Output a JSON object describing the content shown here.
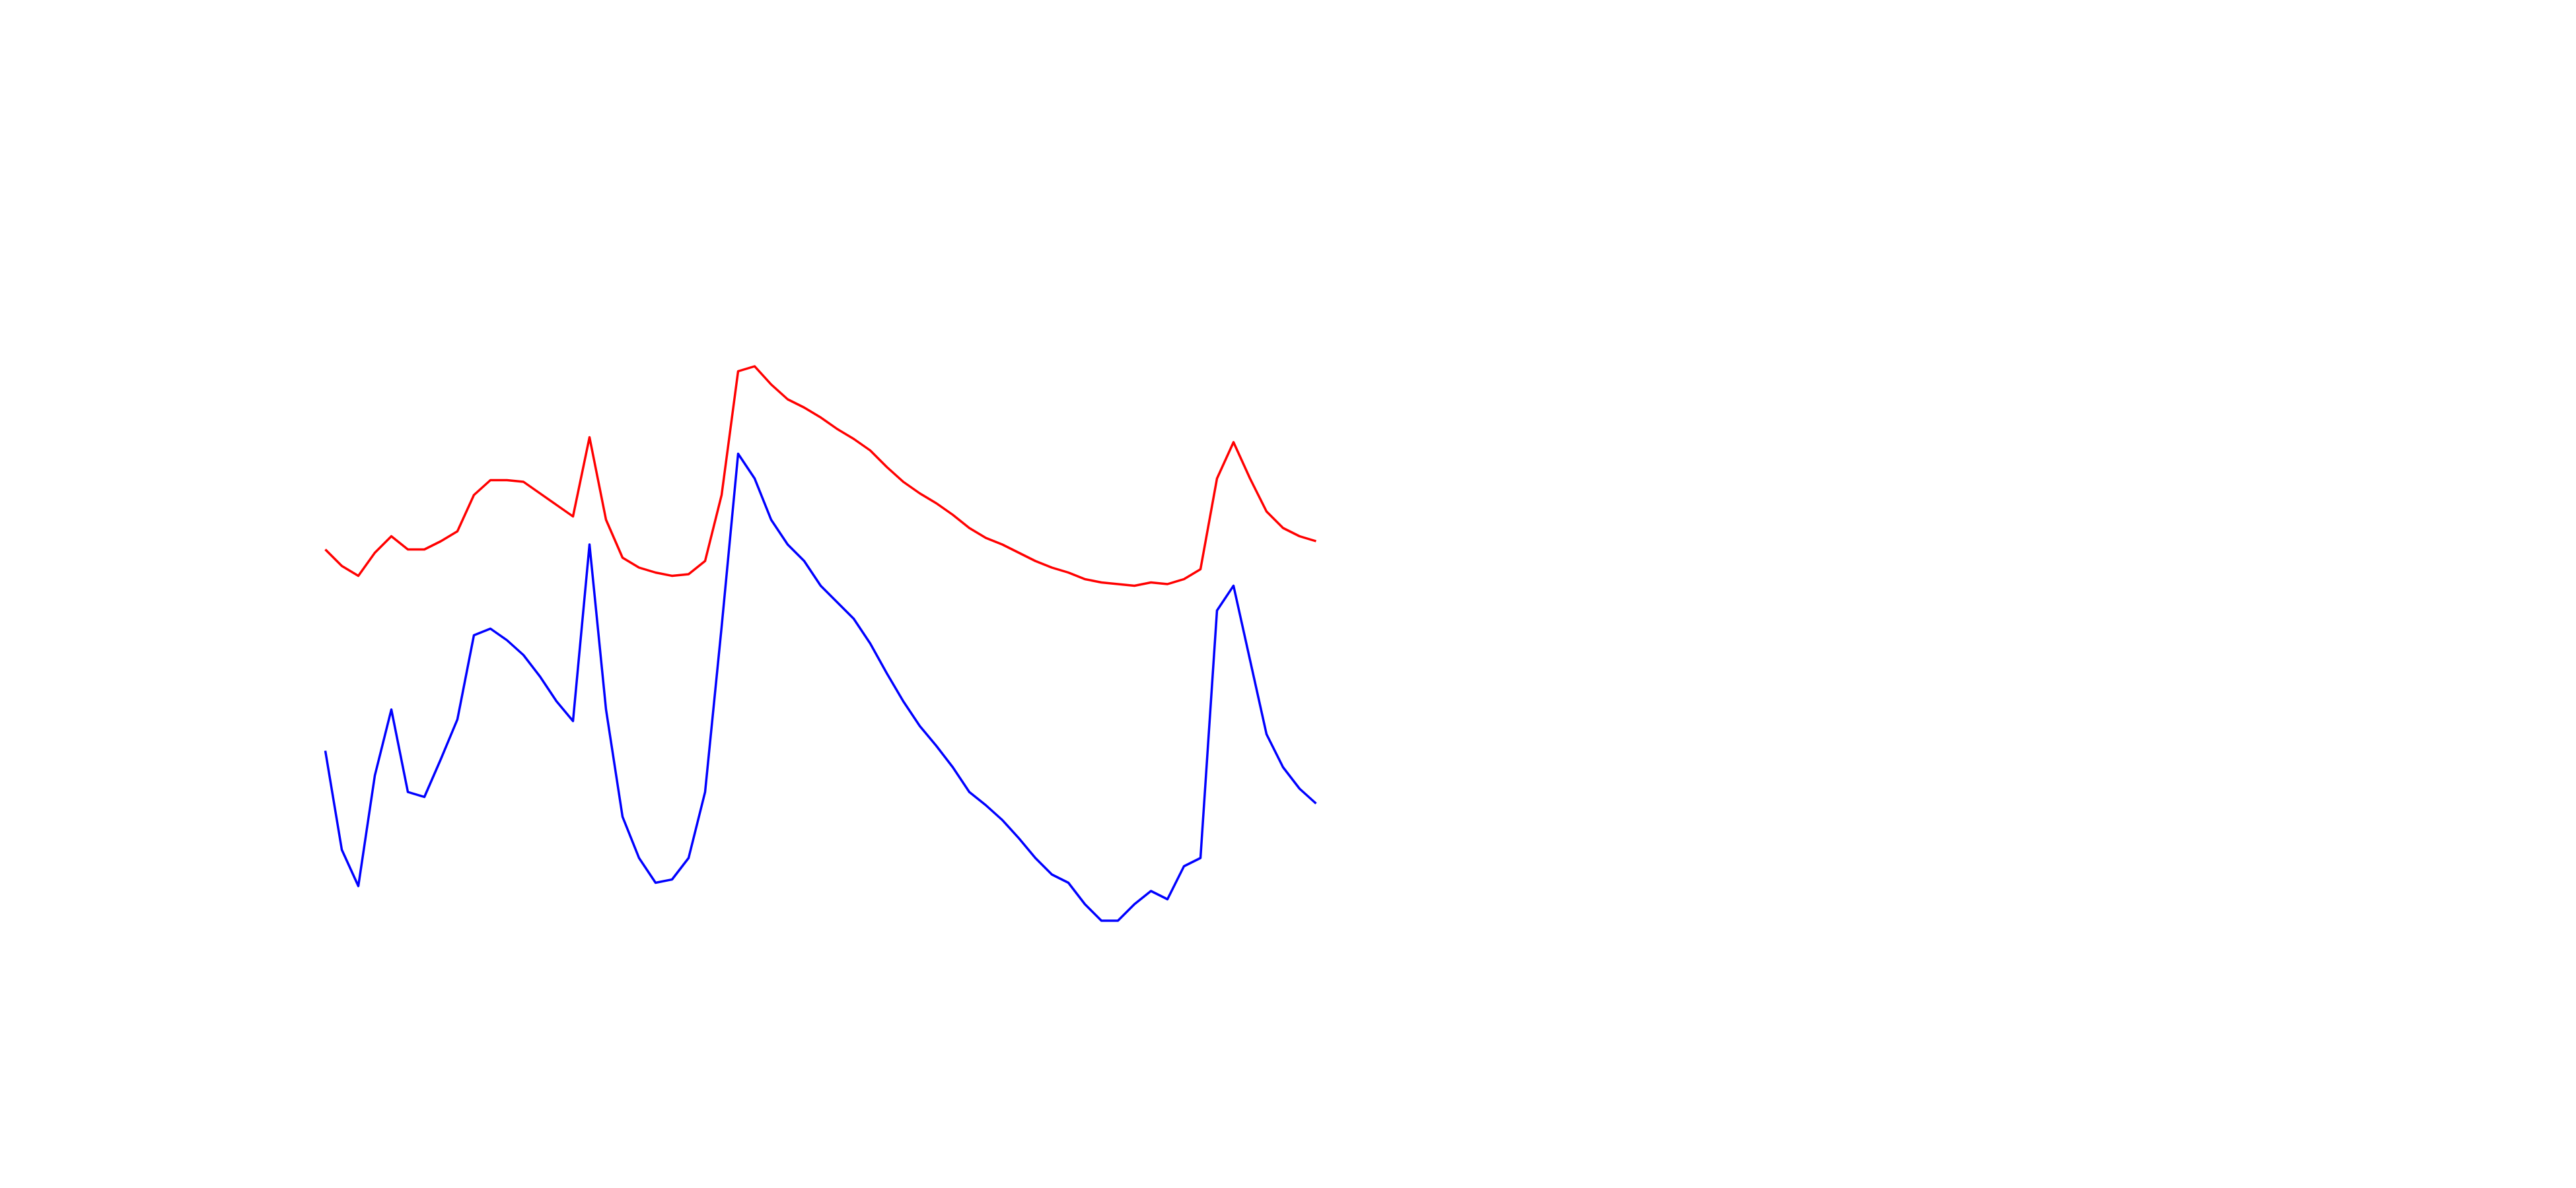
{
  "chart_data": {
    "type": "line",
    "x": [
      0,
      1,
      2,
      3,
      4,
      5,
      6,
      7,
      8,
      9,
      10,
      11,
      12,
      13,
      14,
      15,
      16,
      17,
      18,
      19,
      20,
      21,
      22,
      23,
      24,
      25,
      26,
      27,
      28,
      29,
      30,
      31,
      32,
      33,
      34,
      35,
      36,
      37,
      38,
      39,
      40,
      41,
      42,
      43,
      44,
      45,
      46,
      47,
      48,
      49,
      50,
      51,
      52,
      53,
      54,
      55,
      56,
      57,
      58,
      59,
      60
    ],
    "xlim": [
      0,
      60
    ],
    "ylim": [
      0,
      720
    ],
    "series": [
      {
        "color": "#ff0000",
        "values": [
          387,
          377,
          371,
          385,
          395,
          387,
          387,
          392,
          398,
          420,
          429,
          429,
          428,
          421,
          414,
          407,
          455,
          405,
          382,
          376,
          373,
          371,
          372,
          380,
          420,
          495,
          498,
          487,
          478,
          473,
          467,
          460,
          454,
          447,
          437,
          428,
          421,
          415,
          408,
          400,
          394,
          390,
          385,
          380,
          376,
          373,
          369,
          367,
          366,
          365,
          367,
          366,
          369,
          375,
          430,
          452,
          430,
          410,
          400,
          395,
          392
        ]
      },
      {
        "color": "#0000ff",
        "values": [
          265,
          205,
          183,
          250,
          290,
          240,
          237,
          260,
          284,
          335,
          339,
          332,
          323,
          310,
          295,
          283,
          390,
          290,
          225,
          200,
          185,
          187,
          200,
          240,
          340,
          445,
          430,
          405,
          390,
          380,
          365,
          355,
          345,
          330,
          312,
          295,
          280,
          268,
          255,
          240,
          232,
          223,
          212,
          200,
          190,
          185,
          172,
          162,
          162,
          172,
          180,
          175,
          195,
          200,
          350,
          365,
          320,
          275,
          255,
          242,
          233
        ]
      }
    ]
  }
}
